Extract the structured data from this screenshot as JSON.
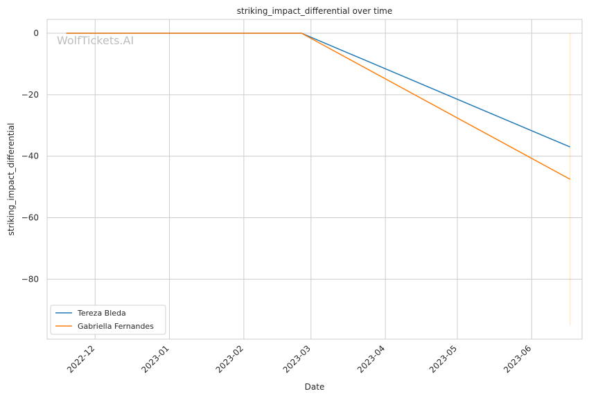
{
  "chart_data": {
    "type": "line",
    "title": "striking_impact_differential over time",
    "xlabel": "Date",
    "ylabel": "striking_impact_differential",
    "watermark": "WolfTickets.AI",
    "x_ticks": [
      "2022-12",
      "2023-01",
      "2023-02",
      "2023-03",
      "2023-04",
      "2023-05",
      "2023-06"
    ],
    "y_ticks": [
      0,
      -20,
      -40,
      -60,
      -80
    ],
    "ylim": [
      -99.5,
      4.5
    ],
    "xlim": [
      "2022-11-11",
      "2023-06-22"
    ],
    "grid": true,
    "legend_position": "bottom-left",
    "series": [
      {
        "name": "Tereza Bleda",
        "color": "#1f77b4",
        "x": [
          "2022-11-19",
          "2023-02-25",
          "2023-06-17"
        ],
        "y": [
          0,
          0,
          -37
        ]
      },
      {
        "name": "Gabriella Fernandes",
        "color": "#ff7f0e",
        "x": [
          "2022-11-19",
          "2023-02-25",
          "2023-06-17"
        ],
        "y": [
          0,
          0,
          -47.5
        ]
      }
    ],
    "faint_vertical_line": {
      "color": "#ff7f0e",
      "x": "2023-06-17",
      "y": [
        0,
        -95
      ]
    }
  }
}
